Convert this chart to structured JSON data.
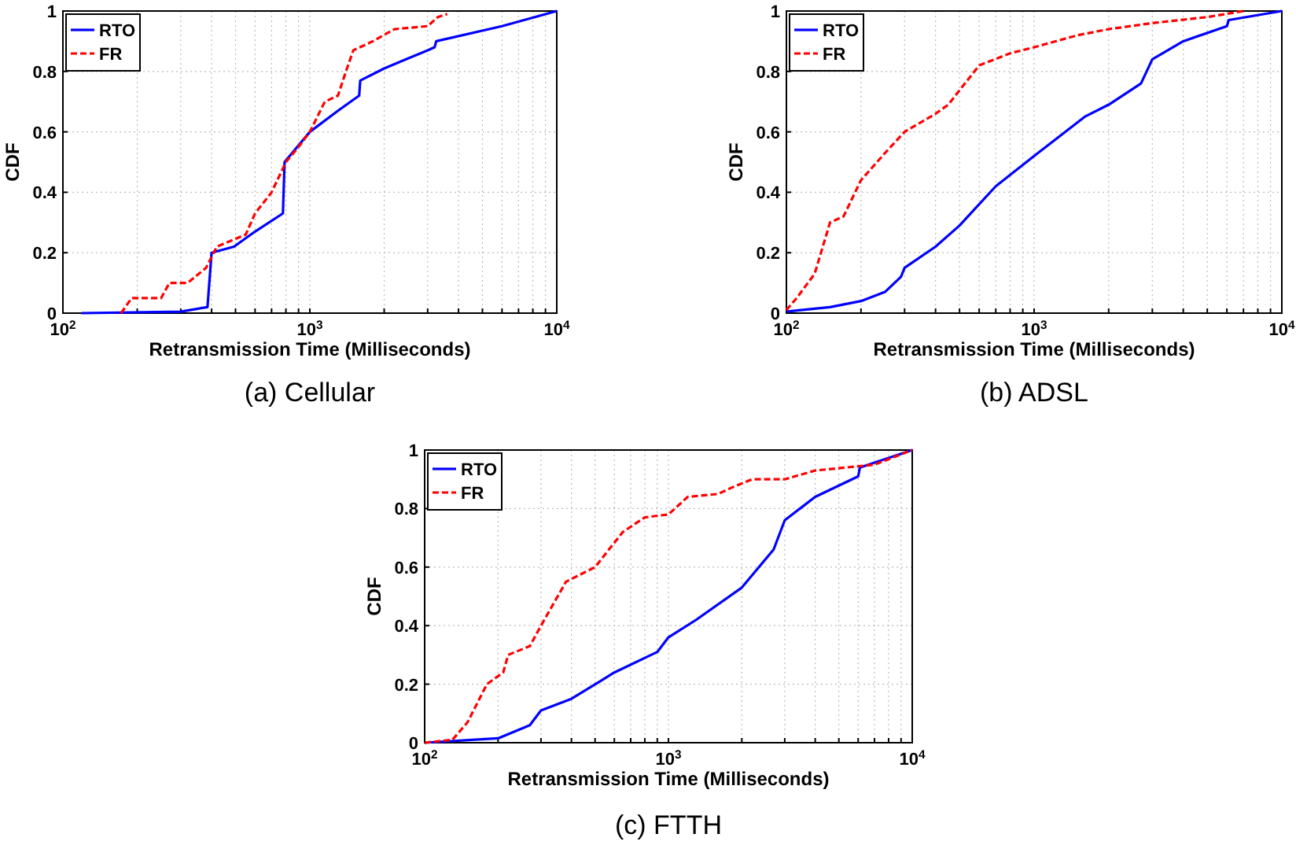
{
  "chart_data": [
    {
      "type": "line",
      "title": "(a) Cellular",
      "xlabel": "Retransmission Time (Milliseconds)",
      "ylabel": "CDF",
      "log": "x",
      "grid": true,
      "legend": "top left",
      "xlim": [
        100,
        10000
      ],
      "ylim": [
        0,
        1
      ],
      "xticks": [
        {
          "value": 100,
          "label": "10$^{2}$"
        },
        {
          "value": 200,
          "label": null
        },
        {
          "value": 300,
          "label": null
        },
        {
          "value": 400,
          "label": null
        },
        {
          "value": 500,
          "label": null
        },
        {
          "value": 600,
          "label": null
        },
        {
          "value": 700,
          "label": null
        },
        {
          "value": 800,
          "label": null
        },
        {
          "value": 900,
          "label": null
        },
        {
          "value": 1000,
          "label": "10$^{3}$"
        },
        {
          "value": 2000,
          "label": null
        },
        {
          "value": 3000,
          "label": null
        },
        {
          "value": 4000,
          "label": null
        },
        {
          "value": 5000,
          "label": null
        },
        {
          "value": 6000,
          "label": null
        },
        {
          "value": 7000,
          "label": null
        },
        {
          "value": 8000,
          "label": null
        },
        {
          "value": 9000,
          "label": null
        },
        {
          "value": 10000,
          "label": "10$^{4}$"
        }
      ],
      "yticks": [
        0,
        0.2,
        0.4,
        0.6,
        0.8,
        1
      ],
      "series": [
        {
          "name": "RTO",
          "color": "#0000ff",
          "line_style": "solid",
          "x": [
            119,
            300,
            385,
            400,
            493,
            600,
            778,
            790,
            1000,
            1300,
            1584,
            1600,
            2000,
            3000,
            3200,
            3250,
            6000,
            10000
          ],
          "values": [
            0,
            0.005,
            0.02,
            0.2,
            0.22,
            0.27,
            0.33,
            0.5,
            0.6,
            0.67,
            0.72,
            0.77,
            0.81,
            0.87,
            0.88,
            0.9,
            0.95,
            1
          ]
        },
        {
          "name": "FR",
          "color": "#ff0000",
          "line_style": "dashed",
          "x": [
            172,
            190,
            250,
            270,
            320,
            380,
            420,
            550,
            600,
            700,
            800,
            900,
            1000,
            1150,
            1300,
            1400,
            1500,
            1800,
            2200,
            3000,
            3300,
            3600
          ],
          "values": [
            0,
            0.05,
            0.05,
            0.1,
            0.1,
            0.15,
            0.22,
            0.26,
            0.33,
            0.4,
            0.5,
            0.55,
            0.6,
            0.7,
            0.72,
            0.8,
            0.87,
            0.9,
            0.94,
            0.95,
            0.98,
            0.99
          ]
        }
      ]
    },
    {
      "type": "line",
      "title": "(b) ADSL",
      "xlabel": "Retransmission Time (Milliseconds)",
      "ylabel": "CDF",
      "log": "x",
      "grid": true,
      "legend": "top left",
      "xlim": [
        100,
        10000
      ],
      "ylim": [
        0,
        1
      ],
      "xticks": [
        {
          "value": 100,
          "label": "10$^{2}$"
        },
        {
          "value": 200,
          "label": null
        },
        {
          "value": 300,
          "label": null
        },
        {
          "value": 400,
          "label": null
        },
        {
          "value": 500,
          "label": null
        },
        {
          "value": 600,
          "label": null
        },
        {
          "value": 700,
          "label": null
        },
        {
          "value": 800,
          "label": null
        },
        {
          "value": 900,
          "label": null
        },
        {
          "value": 1000,
          "label": "10$^{3}$"
        },
        {
          "value": 2000,
          "label": null
        },
        {
          "value": 3000,
          "label": null
        },
        {
          "value": 4000,
          "label": null
        },
        {
          "value": 5000,
          "label": null
        },
        {
          "value": 6000,
          "label": null
        },
        {
          "value": 7000,
          "label": null
        },
        {
          "value": 8000,
          "label": null
        },
        {
          "value": 9000,
          "label": null
        },
        {
          "value": 10000,
          "label": "10$^{4}$"
        }
      ],
      "yticks": [
        0,
        0.2,
        0.4,
        0.6,
        0.8,
        1
      ],
      "series": [
        {
          "name": "RTO",
          "color": "#0000ff",
          "line_style": "solid",
          "x": [
            100,
            150,
            200,
            250,
            290,
            300,
            400,
            500,
            700,
            1000,
            1600,
            2000,
            2700,
            3000,
            4000,
            6000,
            6100,
            10000
          ],
          "values": [
            0.005,
            0.02,
            0.04,
            0.07,
            0.12,
            0.15,
            0.22,
            0.29,
            0.42,
            0.52,
            0.65,
            0.69,
            0.76,
            0.84,
            0.9,
            0.95,
            0.97,
            1
          ]
        },
        {
          "name": "FR",
          "color": "#ff0000",
          "line_style": "dashed",
          "x": [
            100,
            110,
            130,
            150,
            170,
            200,
            250,
            300,
            400,
            450,
            600,
            800,
            1000,
            1500,
            2000,
            3000,
            5000,
            7000
          ],
          "values": [
            0.01,
            0.05,
            0.13,
            0.3,
            0.32,
            0.44,
            0.53,
            0.6,
            0.66,
            0.69,
            0.82,
            0.86,
            0.88,
            0.92,
            0.94,
            0.96,
            0.98,
            1
          ]
        }
      ]
    },
    {
      "type": "line",
      "title": "(c) FTTH",
      "xlabel": "Retransmission Time (Milliseconds)",
      "ylabel": "CDF",
      "log": "x",
      "grid": true,
      "legend": "top left",
      "xlim": [
        100,
        10000
      ],
      "ylim": [
        0,
        1
      ],
      "xticks": [
        {
          "value": 100,
          "label": "10$^{2}$"
        },
        {
          "value": 200,
          "label": null
        },
        {
          "value": 300,
          "label": null
        },
        {
          "value": 400,
          "label": null
        },
        {
          "value": 500,
          "label": null
        },
        {
          "value": 600,
          "label": null
        },
        {
          "value": 700,
          "label": null
        },
        {
          "value": 800,
          "label": null
        },
        {
          "value": 900,
          "label": null
        },
        {
          "value": 1000,
          "label": "10$^{3}$"
        },
        {
          "value": 2000,
          "label": null
        },
        {
          "value": 3000,
          "label": null
        },
        {
          "value": 4000,
          "label": null
        },
        {
          "value": 5000,
          "label": null
        },
        {
          "value": 6000,
          "label": null
        },
        {
          "value": 7000,
          "label": null
        },
        {
          "value": 8000,
          "label": null
        },
        {
          "value": 9000,
          "label": null
        },
        {
          "value": 10000,
          "label": "10$^{4}$"
        }
      ],
      "yticks": [
        0,
        0.2,
        0.4,
        0.6,
        0.8,
        1
      ],
      "series": [
        {
          "name": "RTO",
          "color": "#0000ff",
          "line_style": "solid",
          "x": [
            100,
            200,
            270,
            300,
            400,
            600,
            900,
            1000,
            1300,
            2000,
            2700,
            3000,
            4000,
            6000,
            6100,
            10000
          ],
          "values": [
            0,
            0.015,
            0.06,
            0.11,
            0.15,
            0.24,
            0.31,
            0.36,
            0.42,
            0.53,
            0.66,
            0.76,
            0.84,
            0.91,
            0.94,
            1
          ]
        },
        {
          "name": "FR",
          "color": "#ff0000",
          "line_style": "dashed",
          "x": [
            100,
            130,
            150,
            180,
            210,
            220,
            270,
            300,
            380,
            500,
            650,
            800,
            1000,
            1200,
            1600,
            1800,
            2200,
            3000,
            4000,
            7000,
            10000
          ],
          "values": [
            0,
            0.01,
            0.07,
            0.2,
            0.24,
            0.3,
            0.33,
            0.4,
            0.55,
            0.6,
            0.72,
            0.77,
            0.78,
            0.84,
            0.85,
            0.87,
            0.9,
            0.9,
            0.93,
            0.95,
            1
          ]
        }
      ]
    }
  ]
}
